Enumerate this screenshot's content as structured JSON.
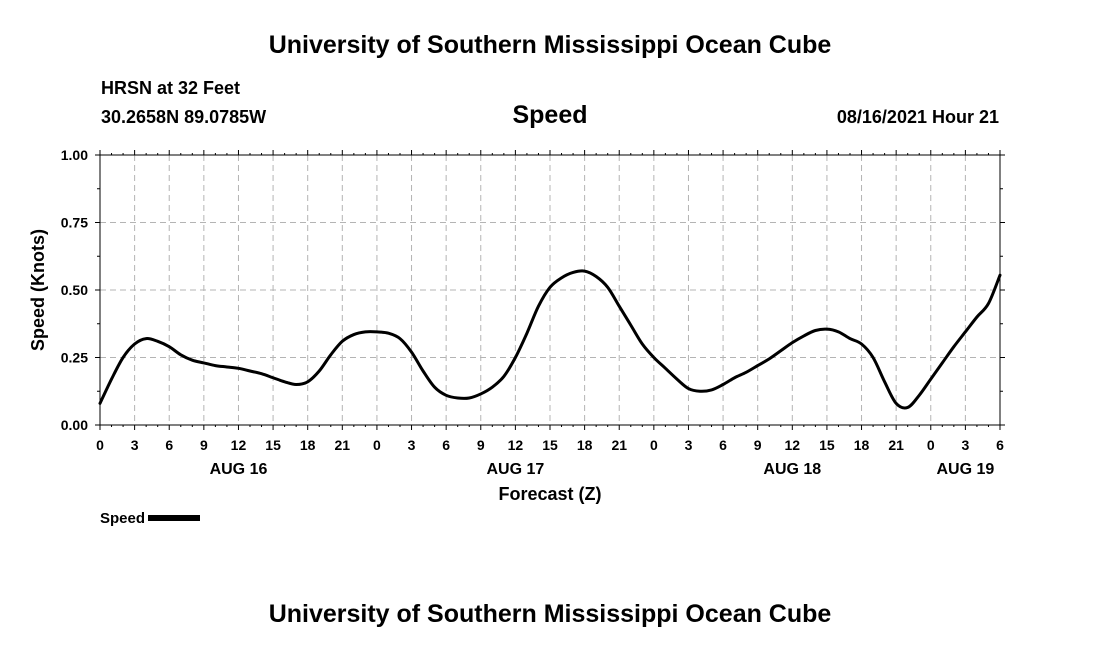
{
  "header": {
    "title_top": "University of Southern Mississippi Ocean Cube",
    "title_bottom": "University of Southern Mississippi Ocean Cube",
    "station": "HRSN at 32 Feet",
    "coords": "30.2658N  89.0785W",
    "plot_title": "Speed",
    "timestamp": "08/16/2021 Hour 21"
  },
  "legend": {
    "label": "Speed"
  },
  "colors": {
    "line": "#000000",
    "grid": "#b4b4b4"
  },
  "chart_data": {
    "type": "line",
    "title": "Speed",
    "xlabel": "Forecast (Z)",
    "ylabel": "Speed (Knots)",
    "ylim": [
      0,
      1
    ],
    "xlim_hours": [
      0,
      78
    ],
    "grid": true,
    "legend_position": "bottom-left",
    "yticks": [
      0,
      0.25,
      0.5,
      0.75,
      1
    ],
    "ytick_labels": [
      "0.00",
      "0.25",
      "0.50",
      "0.75",
      "1.00"
    ],
    "xticks_hours": [
      0,
      3,
      6,
      9,
      12,
      15,
      18,
      21,
      24,
      27,
      30,
      33,
      36,
      39,
      42,
      45,
      48,
      51,
      54,
      57,
      60,
      63,
      66,
      69,
      72,
      75,
      78
    ],
    "xtick_labels": [
      "0",
      "3",
      "6",
      "9",
      "12",
      "15",
      "18",
      "21",
      "0",
      "3",
      "6",
      "9",
      "12",
      "15",
      "18",
      "21",
      "0",
      "3",
      "6",
      "9",
      "12",
      "15",
      "18",
      "21",
      "0",
      "3",
      "6"
    ],
    "day_labels": [
      {
        "hour": 12,
        "label": "AUG 16"
      },
      {
        "hour": 36,
        "label": "AUG 17"
      },
      {
        "hour": 60,
        "label": "AUG 18"
      },
      {
        "hour": 75,
        "label": "AUG 19"
      }
    ],
    "series": [
      {
        "name": "Speed",
        "x": [
          0,
          1,
          2,
          3,
          4,
          5,
          6,
          7,
          8,
          9,
          10,
          11,
          12,
          13,
          14,
          15,
          16,
          17,
          18,
          19,
          20,
          21,
          22,
          23,
          24,
          25,
          26,
          27,
          28,
          29,
          30,
          31,
          32,
          33,
          34,
          35,
          36,
          37,
          38,
          39,
          40,
          41,
          42,
          43,
          44,
          45,
          46,
          47,
          48,
          49,
          50,
          51,
          52,
          53,
          54,
          55,
          56,
          57,
          58,
          59,
          60,
          61,
          62,
          63,
          64,
          65,
          66,
          67,
          68,
          69,
          70,
          71,
          72,
          73,
          74,
          75,
          76,
          77,
          78
        ],
        "values": [
          0.08,
          0.17,
          0.25,
          0.3,
          0.32,
          0.31,
          0.29,
          0.26,
          0.24,
          0.23,
          0.22,
          0.215,
          0.21,
          0.2,
          0.19,
          0.175,
          0.16,
          0.15,
          0.16,
          0.2,
          0.26,
          0.31,
          0.335,
          0.345,
          0.345,
          0.34,
          0.32,
          0.27,
          0.2,
          0.14,
          0.11,
          0.1,
          0.1,
          0.115,
          0.14,
          0.18,
          0.25,
          0.34,
          0.44,
          0.51,
          0.545,
          0.565,
          0.57,
          0.55,
          0.51,
          0.44,
          0.37,
          0.3,
          0.25,
          0.21,
          0.17,
          0.135,
          0.125,
          0.13,
          0.15,
          0.175,
          0.195,
          0.22,
          0.245,
          0.275,
          0.305,
          0.33,
          0.35,
          0.355,
          0.345,
          0.32,
          0.3,
          0.25,
          0.16,
          0.08,
          0.065,
          0.11,
          0.17,
          0.23,
          0.29,
          0.345,
          0.4,
          0.45,
          0.555
        ]
      }
    ]
  }
}
